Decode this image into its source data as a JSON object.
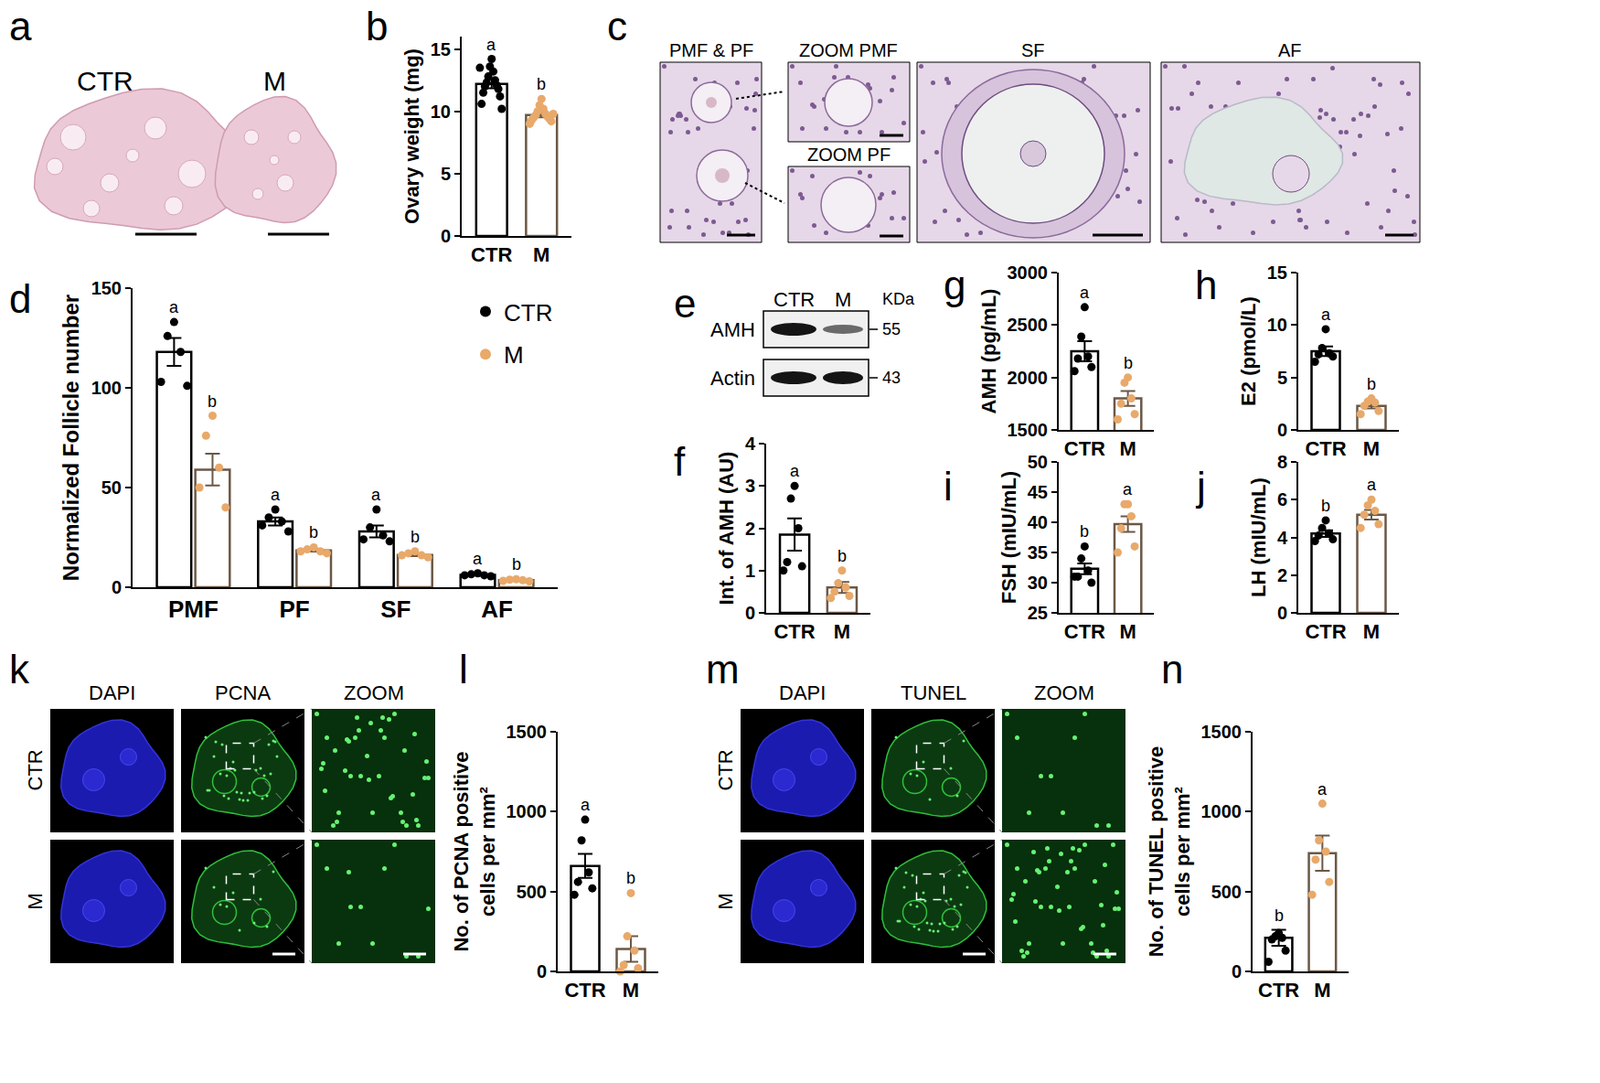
{
  "chart_data": [
    {
      "panel": "b",
      "type": "bar",
      "categories": [
        "CTR",
        "M"
      ],
      "values": [
        12.2,
        9.7
      ],
      "errors": [
        0.35,
        0.18
      ],
      "points": [
        [
          14.2,
          13.6,
          13.2,
          12.8,
          12.5,
          12.3,
          12.1,
          12.0,
          11.8,
          11.5,
          11.2,
          10.6,
          10.2,
          13.5
        ],
        [
          11.0,
          10.5,
          10.2,
          10.0,
          9.8,
          9.7,
          9.6,
          9.5,
          9.4,
          9.3,
          9.2,
          9.0,
          9.8
        ]
      ],
      "significance": [
        "a",
        "b"
      ],
      "colors": [
        "#000000",
        "#e8a96a"
      ],
      "y_label": "Ovary weight (mg)",
      "ylim": [
        0,
        16
      ],
      "yticks": [
        0,
        5,
        10,
        15
      ]
    },
    {
      "panel": "d",
      "type": "bar",
      "categories": [
        "PMF",
        "PF",
        "SF",
        "AF"
      ],
      "legend": "upper right",
      "series": [
        {
          "name": "CTR",
          "color": "#000000",
          "values": [
            118,
            33,
            28,
            6.2
          ],
          "errors": [
            7,
            2,
            3,
            0.4
          ],
          "points": [
            [
              133,
              126,
              118,
              103,
              101
            ],
            [
              39,
              35,
              33,
              31,
              28
            ],
            [
              39,
              30,
              26,
              24,
              23
            ],
            [
              7,
              6.5,
              6,
              6,
              5.5
            ]
          ],
          "significance": [
            "a",
            "a",
            "a",
            "a"
          ]
        },
        {
          "name": "M",
          "color": "#e8a96a",
          "values": [
            59,
            18.5,
            16.2,
            3.5
          ],
          "errors": [
            8,
            0.6,
            0.6,
            0.2
          ],
          "points": [
            [
              86,
              76,
              60,
              50,
              40
            ],
            [
              20,
              19,
              18,
              18,
              17
            ],
            [
              18,
              17,
              16,
              16,
              15
            ],
            [
              4,
              3.8,
              3.5,
              3.2,
              3
            ]
          ],
          "significance": [
            "b",
            "b",
            "b",
            "b"
          ]
        }
      ],
      "y_label": "Normalized Follicle number",
      "ylim": [
        0,
        150
      ],
      "yticks": [
        0,
        50,
        100,
        150
      ]
    },
    {
      "panel": "f",
      "type": "bar",
      "categories": [
        "CTR",
        "M"
      ],
      "values": [
        1.85,
        0.6
      ],
      "errors": [
        0.38,
        0.13
      ],
      "points": [
        [
          3.0,
          2.7,
          2.0,
          1.2,
          1.1,
          1.0
        ],
        [
          1.0,
          0.7,
          0.6,
          0.5,
          0.4,
          0.35
        ]
      ],
      "significance": [
        "a",
        "b"
      ],
      "colors": [
        "#000000",
        "#e8a96a"
      ],
      "y_label": "Int. of AMH (AU)",
      "ylim": [
        0,
        4
      ],
      "yticks": [
        0,
        1,
        2,
        3,
        4
      ]
    },
    {
      "panel": "g",
      "type": "bar",
      "categories": [
        "CTR",
        "M"
      ],
      "values": [
        2250,
        1800
      ],
      "errors": [
        95,
        70
      ],
      "points": [
        [
          2670,
          2390,
          2200,
          2180,
          2100,
          2060
        ],
        [
          2000,
          1950,
          1800,
          1750,
          1650,
          1600
        ]
      ],
      "significance": [
        "a",
        "b"
      ],
      "colors": [
        "#000000",
        "#e8a96a"
      ],
      "y_label": "AMH (pg/mL)",
      "ylim": [
        1500,
        3000
      ],
      "yticks": [
        1500,
        2000,
        2500,
        3000
      ]
    },
    {
      "panel": "h",
      "type": "bar",
      "categories": [
        "CTR",
        "M"
      ],
      "values": [
        7.5,
        2.3
      ],
      "errors": [
        0.45,
        0.25
      ],
      "points": [
        [
          9.6,
          7.8,
          7.3,
          7.2,
          7.0,
          6.5
        ],
        [
          3.0,
          2.7,
          2.6,
          2.3,
          1.8,
          1.5
        ]
      ],
      "significance": [
        "a",
        "b"
      ],
      "colors": [
        "#000000",
        "#e8a96a"
      ],
      "y_label": "E2 (pmol/L)",
      "ylim": [
        0,
        15
      ],
      "yticks": [
        0,
        5,
        10,
        15
      ]
    },
    {
      "panel": "i",
      "type": "bar",
      "categories": [
        "CTR",
        "M"
      ],
      "values": [
        32.3,
        39.7
      ],
      "errors": [
        0.9,
        1.3
      ],
      "points": [
        [
          36,
          34,
          32,
          31,
          30,
          31
        ],
        [
          43,
          43,
          41,
          39,
          36,
          35
        ]
      ],
      "significance": [
        "b",
        "a"
      ],
      "colors": [
        "#000000",
        "#e8a96a"
      ],
      "y_label": "FSH (mIU/mL)",
      "ylim": [
        25,
        50
      ],
      "yticks": [
        25,
        30,
        35,
        40,
        45,
        50
      ]
    },
    {
      "panel": "j",
      "type": "bar",
      "categories": [
        "CTR",
        "M"
      ],
      "values": [
        4.2,
        5.2
      ],
      "errors": [
        0.17,
        0.25
      ],
      "points": [
        [
          4.9,
          4.5,
          4.2,
          4.1,
          3.9,
          3.8
        ],
        [
          6.0,
          5.7,
          5.4,
          5.2,
          4.7,
          4.5
        ]
      ],
      "significance": [
        "b",
        "a"
      ],
      "colors": [
        "#000000",
        "#e8a96a"
      ],
      "y_label": "LH (mIU/mL)",
      "ylim": [
        0,
        8
      ],
      "yticks": [
        0,
        2,
        4,
        6,
        8
      ]
    },
    {
      "panel": "l",
      "type": "bar",
      "categories": [
        "CTR",
        "M"
      ],
      "values": [
        660,
        140
      ],
      "errors": [
        75,
        80
      ],
      "points": [
        [
          950,
          820,
          620,
          560,
          520,
          480
        ],
        [
          490,
          220,
          130,
          40,
          20,
          0
        ]
      ],
      "significance": [
        "a",
        "b"
      ],
      "colors": [
        "#000000",
        "#e8a96a"
      ],
      "y_label": "No. of PCNA positive cells per mm²",
      "ylim": [
        0,
        1500
      ],
      "yticks": [
        0,
        500,
        1000,
        1500
      ]
    },
    {
      "panel": "n",
      "type": "bar",
      "categories": [
        "CTR",
        "M"
      ],
      "values": [
        210,
        740
      ],
      "errors": [
        50,
        110
      ],
      "points": [
        [
          240,
          220,
          210,
          200,
          130,
          60
        ],
        [
          1050,
          820,
          750,
          700,
          560,
          480
        ]
      ],
      "significance": [
        "b",
        "a"
      ],
      "colors": [
        "#000000",
        "#e8a96a"
      ],
      "y_label": "No. of TUNEL positive cells per mm²",
      "ylim": [
        0,
        1500
      ],
      "yticks": [
        0,
        500,
        1000,
        1500
      ]
    }
  ],
  "figures": [
    {
      "panel": "a",
      "type": "image",
      "labels": [
        "CTR",
        "M"
      ]
    },
    {
      "panel": "c",
      "type": "image",
      "labels": [
        "PMF & PF",
        "ZOOM PMF",
        "ZOOM PF",
        "SF",
        "AF"
      ]
    },
    {
      "panel": "e",
      "type": "western_blot",
      "columns": [
        "CTR",
        "M"
      ],
      "unit": "KDa",
      "rows": [
        {
          "label": "AMH",
          "kda": 55
        },
        {
          "label": "Actin",
          "kda": 43
        }
      ]
    },
    {
      "panel": "k",
      "type": "fluorescence",
      "columns": [
        "DAPI",
        "PCNA",
        "ZOOM"
      ],
      "rows": [
        "CTR",
        "M"
      ]
    },
    {
      "panel": "m",
      "type": "fluorescence",
      "columns": [
        "DAPI",
        "TUNEL",
        "ZOOM"
      ],
      "rows": [
        "CTR",
        "M"
      ]
    }
  ]
}
